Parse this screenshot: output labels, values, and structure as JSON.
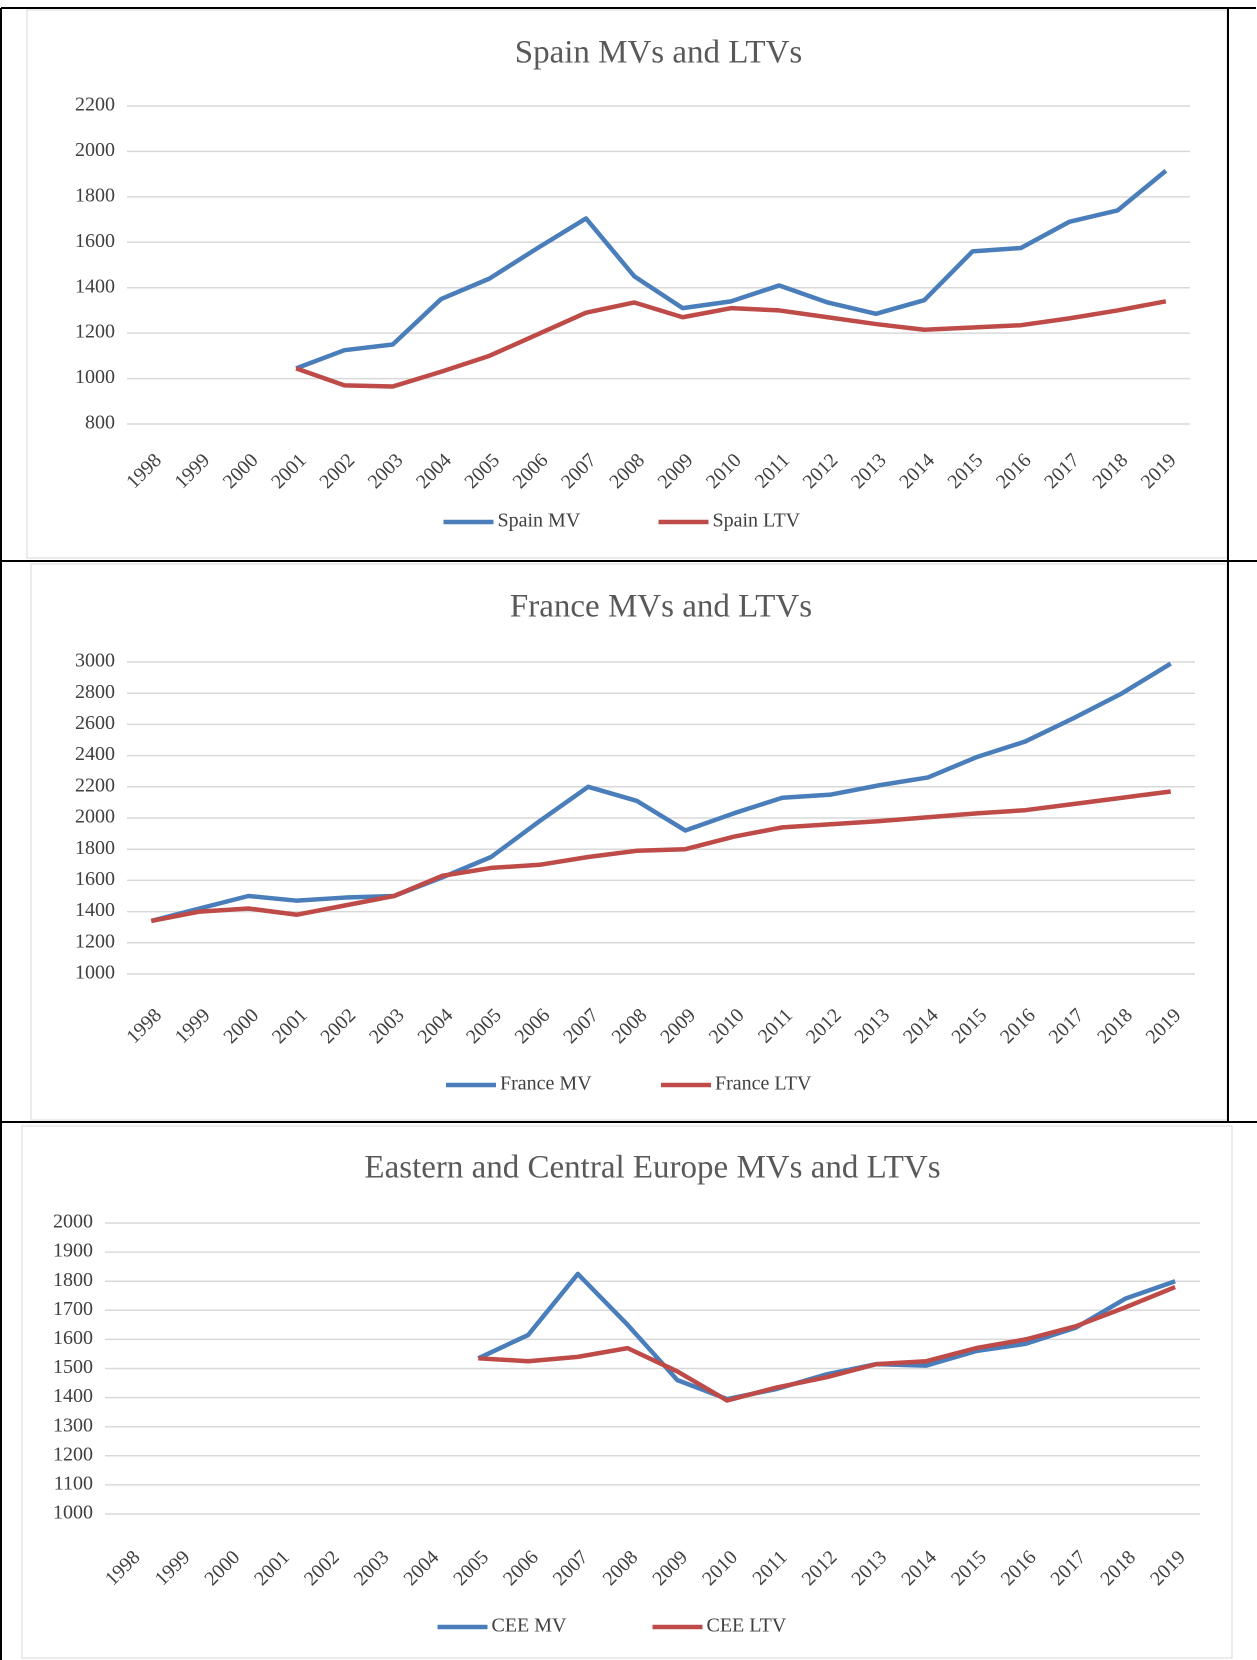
{
  "chart_data": [
    {
      "type": "line",
      "title": "Spain MVs and LTVs",
      "categories": [
        "1998",
        "1999",
        "2000",
        "2001",
        "2002",
        "2003",
        "2004",
        "2005",
        "2006",
        "2007",
        "2008",
        "2009",
        "2010",
        "2011",
        "2012",
        "2013",
        "2014",
        "2015",
        "2016",
        "2017",
        "2018",
        "2019"
      ],
      "series": [
        {
          "name": "Spain MV",
          "color": "#4a7ebb",
          "values": [
            null,
            null,
            null,
            1045,
            1125,
            1150,
            1350,
            1440,
            1575,
            1705,
            1450,
            1310,
            1340,
            1410,
            1335,
            1285,
            1345,
            1560,
            1575,
            1690,
            1740,
            1915
          ]
        },
        {
          "name": "Spain LTV",
          "color": "#be4b48",
          "values": [
            null,
            null,
            null,
            1045,
            970,
            965,
            1030,
            1100,
            1195,
            1290,
            1335,
            1270,
            1310,
            1300,
            1270,
            1240,
            1215,
            1225,
            1235,
            1265,
            1300,
            1340
          ]
        }
      ],
      "ylim": [
        800,
        2200
      ],
      "yticks": [
        800,
        1000,
        1200,
        1400,
        1600,
        1800,
        2000,
        2200
      ],
      "grid": true,
      "legend": "bottom"
    },
    {
      "type": "line",
      "title": "France MVs and LTVs",
      "categories": [
        "1998",
        "1999",
        "2000",
        "2001",
        "2002",
        "2003",
        "2004",
        "2005",
        "2006",
        "2007",
        "2008",
        "2009",
        "2010",
        "2011",
        "2012",
        "2013",
        "2014",
        "2015",
        "2016",
        "2017",
        "2018",
        "2019"
      ],
      "series": [
        {
          "name": "France MV",
          "color": "#4a7ebb",
          "values": [
            1340,
            1420,
            1500,
            1470,
            1490,
            1500,
            1620,
            1750,
            1980,
            2200,
            2110,
            1920,
            2030,
            2130,
            2150,
            2210,
            2260,
            2390,
            2490,
            2640,
            2800,
            2990
          ]
        },
        {
          "name": "France LTV",
          "color": "#be4b48",
          "values": [
            1340,
            1400,
            1420,
            1380,
            1440,
            1500,
            1630,
            1680,
            1700,
            1750,
            1790,
            1800,
            1880,
            1940,
            1960,
            1980,
            2005,
            2030,
            2050,
            2090,
            2130,
            2170
          ]
        }
      ],
      "ylim": [
        1000,
        3000
      ],
      "yticks": [
        1000,
        1200,
        1400,
        1600,
        1800,
        2000,
        2200,
        2400,
        2600,
        2800,
        3000
      ],
      "grid": true,
      "legend": "bottom"
    },
    {
      "type": "line",
      "title": "Eastern and Central Europe  MVs and LTVs",
      "categories": [
        "1998",
        "1999",
        "2000",
        "2001",
        "2002",
        "2003",
        "2004",
        "2005",
        "2006",
        "2007",
        "2008",
        "2009",
        "2010",
        "2011",
        "2012",
        "2013",
        "2014",
        "2015",
        "2016",
        "2017",
        "2018",
        "2019"
      ],
      "series": [
        {
          "name": "CEE MV",
          "color": "#4a7ebb",
          "values": [
            null,
            null,
            null,
            null,
            null,
            null,
            null,
            1535,
            1615,
            1825,
            1650,
            1460,
            1395,
            1430,
            1480,
            1515,
            1510,
            1560,
            1585,
            1640,
            1740,
            1800
          ]
        },
        {
          "name": "CEE LTV",
          "color": "#be4b48",
          "values": [
            null,
            null,
            null,
            null,
            null,
            null,
            null,
            1535,
            1525,
            1540,
            1570,
            1490,
            1390,
            1435,
            1470,
            1515,
            1525,
            1570,
            1600,
            1645,
            1710,
            1780
          ]
        }
      ],
      "ylim": [
        1000,
        2000
      ],
      "yticks": [
        1000,
        1100,
        1200,
        1300,
        1400,
        1500,
        1600,
        1700,
        1800,
        1900,
        2000
      ],
      "grid": true,
      "legend": "bottom"
    }
  ]
}
